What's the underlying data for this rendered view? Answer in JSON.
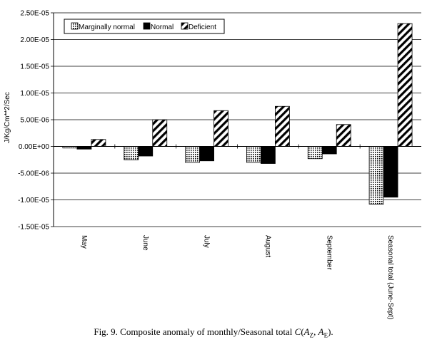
{
  "chart_data": {
    "type": "bar",
    "title": "",
    "xlabel": "",
    "ylabel": "J/Kg/Cm**2/Sec",
    "ylim": [
      -1.5e-05,
      2.5e-05
    ],
    "yticks": [
      2.5e-05,
      2e-05,
      1.5e-05,
      1e-05,
      5e-06,
      0,
      -5e-06,
      -1e-05,
      -1.5e-05
    ],
    "ytick_labels": [
      "2.50E-05",
      "2.00E-05",
      "1.50E-05",
      "1.00E-05",
      "5.00E-06",
      "0.00E+00",
      "-5.00E-06",
      "-1.00E-05",
      "-1.50E-05"
    ],
    "grid": true,
    "legend_position": "top-left",
    "categories": [
      "May",
      "June",
      "July",
      "August",
      "September",
      "Seasonal total (June-Sept)"
    ],
    "series": [
      {
        "name": "Marginally normal",
        "pattern": "dots",
        "values": [
          -3e-07,
          -2.5e-06,
          -3e-06,
          -3e-06,
          -2.3e-06,
          -1.08e-05
        ]
      },
      {
        "name": "Normal",
        "pattern": "solid",
        "values": [
          -5e-07,
          -1.8e-06,
          -2.7e-06,
          -3.2e-06,
          -1.4e-06,
          -9.5e-06
        ]
      },
      {
        "name": "Deficient",
        "pattern": "hatch",
        "values": [
          1.3e-06,
          5e-06,
          6.7e-06,
          7.5e-06,
          4.1e-06,
          2.3e-05
        ]
      }
    ]
  },
  "caption": {
    "prefix": "Fig. 9. Composite anomaly of monthly/Seasonal total ",
    "func": "C",
    "open": "(",
    "a1": "A",
    "sub1": "Z",
    "sep": ", ",
    "a2": "A",
    "sub2": "E",
    "close": ")."
  }
}
